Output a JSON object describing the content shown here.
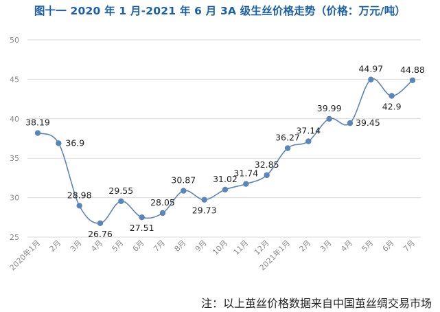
{
  "chart_data": {
    "type": "line",
    "title": "图十一 2020 年 1 月-2021 年 6 月 3A 级生丝价格走势（价格：万元/吨）",
    "note": "注：以上茧丝价格数据来自中国茧丝绸交易市场",
    "xlabel": "",
    "ylabel": "",
    "ylim": [
      25,
      50
    ],
    "yticks": [
      25,
      30,
      35,
      40,
      45,
      50
    ],
    "grid": true,
    "legend": "none",
    "categories": [
      "2020年1月",
      "2月",
      "3月",
      "4月",
      "5月",
      "6月",
      "7月",
      "8月",
      "9月",
      "10月",
      "11月",
      "12月",
      "2021年1月",
      "2月",
      "3月",
      "4月",
      "5月",
      "6月",
      "7月"
    ],
    "series": [
      {
        "values": [
          38.19,
          36.9,
          28.98,
          26.76,
          29.55,
          27.51,
          28.05,
          30.87,
          29.73,
          31.02,
          31.74,
          32.85,
          36.27,
          37.14,
          39.99,
          39.45,
          44.97,
          42.9,
          44.88
        ],
        "labels": [
          "38.19",
          "36.9",
          "28.98",
          "26.76",
          "29.55",
          "27.51",
          "28.05",
          "30.87",
          "29.73",
          "31.02",
          "31.74",
          "32.85",
          "36.27",
          "37.14",
          "39.99",
          "39.45",
          "44.97",
          "42.9",
          "44.88"
        ],
        "color": "#5b84b8"
      }
    ],
    "gridColor": "#d9d9d9",
    "axisTextColor": "#8a8a8a"
  }
}
